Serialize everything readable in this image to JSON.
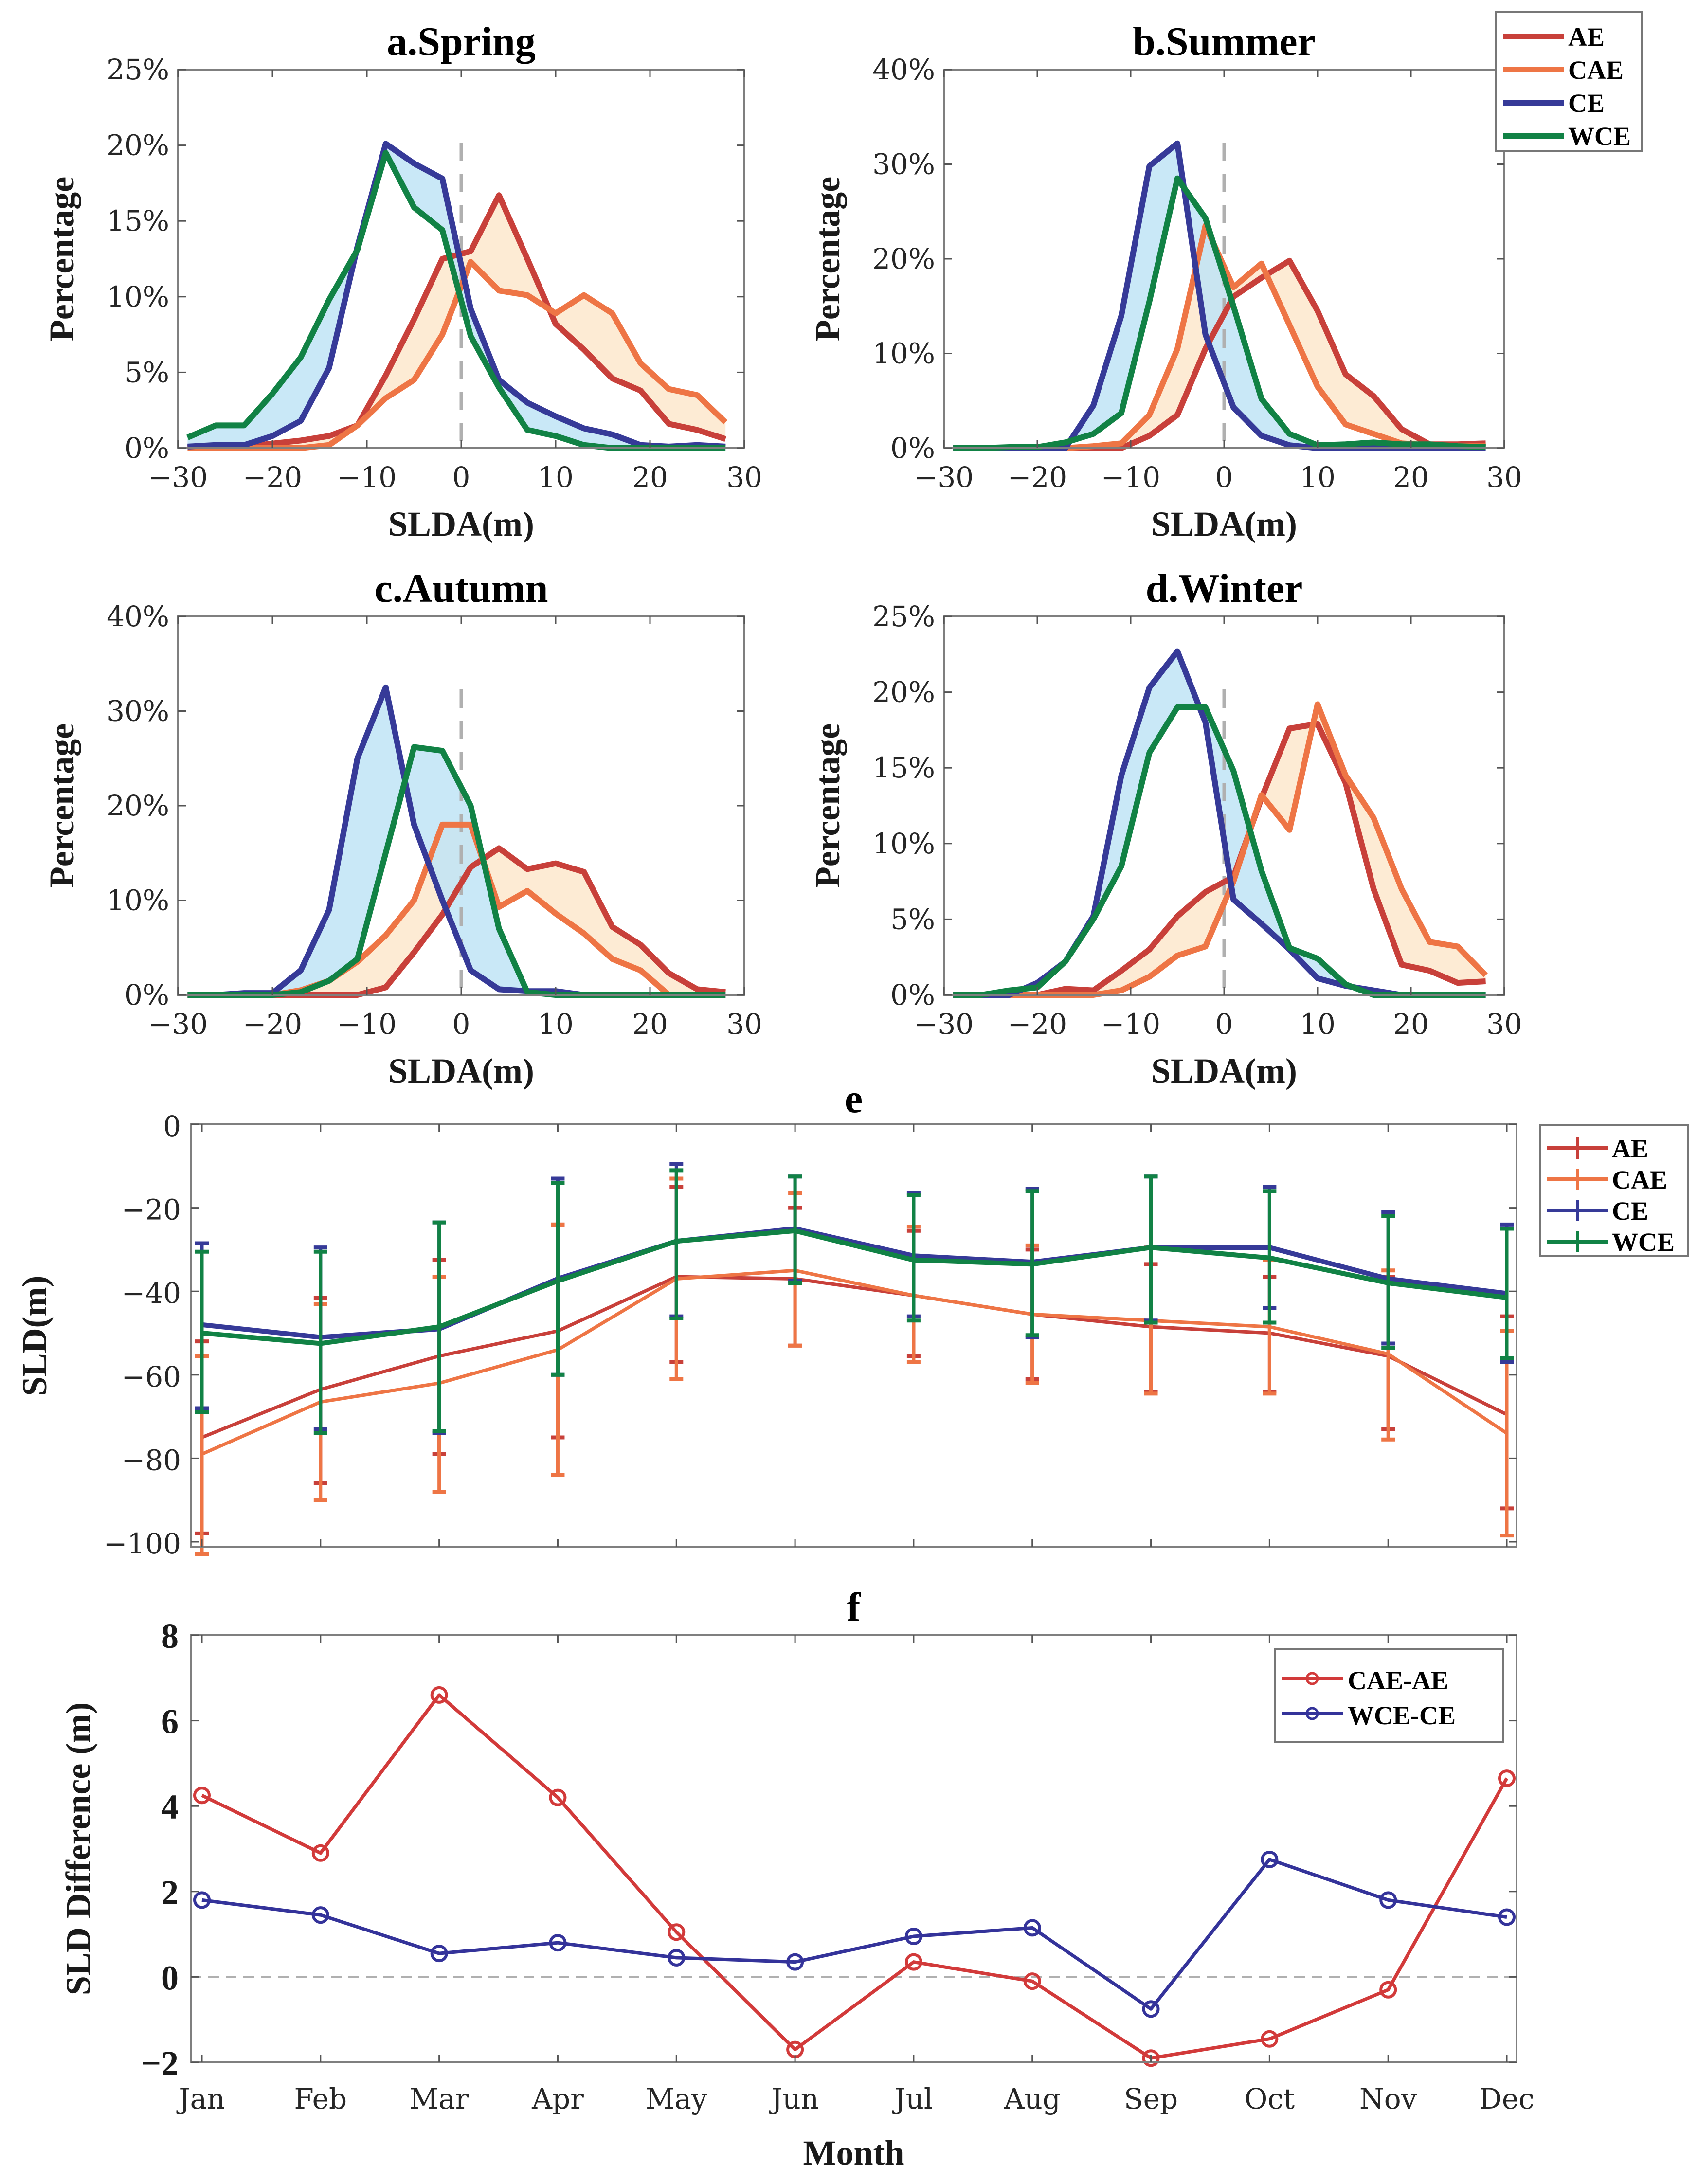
{
  "chart_data": [
    {
      "id": "a",
      "type": "line",
      "title": "a.Spring",
      "xlabel": "SLDA(m)",
      "ylabel": "Percentage",
      "xlim": [
        -30,
        30
      ],
      "ylim": [
        0,
        25
      ],
      "xticks": [
        -30,
        -20,
        -10,
        0,
        10,
        20,
        30
      ],
      "xtick_labels": [
        "−30",
        "−20",
        "−10",
        "0",
        "10",
        "20",
        "30"
      ],
      "yticks": [
        0,
        5,
        10,
        15,
        20,
        25
      ],
      "ytick_labels": [
        "0%",
        "5%",
        "10%",
        "15%",
        "20%",
        "25%"
      ],
      "x": [
        -29,
        -26,
        -23,
        -20,
        -17,
        -14,
        -11,
        -8,
        -5,
        -2,
        1,
        4,
        7,
        10,
        13,
        16,
        19,
        22,
        25,
        28
      ],
      "series": [
        {
          "name": "AE",
          "values": [
            0,
            0.1,
            0.1,
            0.3,
            0.5,
            0.8,
            1.5,
            4.8,
            8.5,
            12.5,
            13.0,
            16.7,
            12.5,
            8.2,
            6.5,
            4.6,
            3.8,
            1.6,
            1.2,
            0.6
          ]
        },
        {
          "name": "CAE",
          "values": [
            0,
            0,
            0,
            0,
            0,
            0.2,
            1.5,
            3.3,
            4.5,
            7.5,
            12.3,
            10.4,
            10.1,
            8.9,
            10.1,
            8.9,
            5.6,
            3.9,
            3.5,
            1.7
          ]
        },
        {
          "name": "CE",
          "values": [
            0.1,
            0.2,
            0.2,
            0.8,
            1.8,
            5.3,
            13.3,
            20.1,
            18.8,
            17.8,
            9.2,
            4.5,
            3.0,
            2.1,
            1.3,
            0.9,
            0.2,
            0.1,
            0.2,
            0.1
          ]
        },
        {
          "name": "WCE",
          "values": [
            0.7,
            1.5,
            1.5,
            3.6,
            6.0,
            9.8,
            13.1,
            19.5,
            15.9,
            14.4,
            7.4,
            4.0,
            1.2,
            0.8,
            0.2,
            0,
            0,
            0,
            0,
            0
          ]
        }
      ],
      "reference_line_x": 0
    },
    {
      "id": "b",
      "type": "line",
      "title": "b.Summer",
      "xlabel": "SLDA(m)",
      "ylabel": "Percentage",
      "xlim": [
        -30,
        30
      ],
      "ylim": [
        0,
        40
      ],
      "xticks": [
        -30,
        -20,
        -10,
        0,
        10,
        20,
        30
      ],
      "xtick_labels": [
        "−30",
        "−20",
        "−10",
        "0",
        "10",
        "20",
        "30"
      ],
      "yticks": [
        0,
        10,
        20,
        30,
        40
      ],
      "ytick_labels": [
        "0%",
        "10%",
        "20%",
        "30%",
        "40%"
      ],
      "x": [
        -29,
        -26,
        -23,
        -20,
        -17,
        -14,
        -11,
        -8,
        -5,
        -2,
        1,
        4,
        7,
        10,
        13,
        16,
        19,
        22,
        25,
        28
      ],
      "series": [
        {
          "name": "AE",
          "values": [
            0,
            0,
            0,
            0,
            0,
            0,
            0,
            1.3,
            3.5,
            10.5,
            16.0,
            18.0,
            19.8,
            14.5,
            7.8,
            5.5,
            2.0,
            0.4,
            0.4,
            0.5
          ]
        },
        {
          "name": "CAE",
          "values": [
            0,
            0,
            0,
            0,
            0,
            0.2,
            0.5,
            3.5,
            10.5,
            23.5,
            17.0,
            19.5,
            13.0,
            6.5,
            2.5,
            1.5,
            0.5,
            0.3,
            0.2,
            0.2
          ]
        },
        {
          "name": "CE",
          "values": [
            0,
            0,
            0,
            0,
            0,
            4.5,
            14.0,
            29.8,
            32.2,
            12.0,
            4.3,
            1.3,
            0.3,
            0,
            0,
            0,
            0,
            0,
            0,
            0
          ]
        },
        {
          "name": "WCE",
          "values": [
            0,
            0,
            0.1,
            0.1,
            0.6,
            1.5,
            3.7,
            15.5,
            28.5,
            24.3,
            15.0,
            5.2,
            1.5,
            0.3,
            0.4,
            0.6,
            0.4,
            0.4,
            0.2,
            0.1
          ]
        }
      ],
      "reference_line_x": 0,
      "legend": {
        "placement": "top-right-outside",
        "entries": [
          "AE",
          "CAE",
          "CE",
          "WCE"
        ]
      }
    },
    {
      "id": "c",
      "type": "line",
      "title": "c.Autumn",
      "xlabel": "SLDA(m)",
      "ylabel": "Percentage",
      "xlim": [
        -30,
        30
      ],
      "ylim": [
        0,
        40
      ],
      "xticks": [
        -30,
        -20,
        -10,
        0,
        10,
        20,
        30
      ],
      "xtick_labels": [
        "−30",
        "−20",
        "−10",
        "0",
        "10",
        "20",
        "30"
      ],
      "yticks": [
        0,
        10,
        20,
        30,
        40
      ],
      "ytick_labels": [
        "0%",
        "10%",
        "20%",
        "30%",
        "40%"
      ],
      "x": [
        -29,
        -26,
        -23,
        -20,
        -17,
        -14,
        -11,
        -8,
        -5,
        -2,
        1,
        4,
        7,
        10,
        13,
        16,
        19,
        22,
        25,
        28
      ],
      "series": [
        {
          "name": "AE",
          "values": [
            0,
            0,
            0,
            0,
            0,
            0,
            0,
            0.8,
            4.5,
            8.5,
            13.5,
            15.5,
            13.3,
            13.9,
            13.0,
            7.2,
            5.3,
            2.3,
            0.6,
            0.3
          ]
        },
        {
          "name": "CAE",
          "values": [
            0,
            0,
            0,
            0,
            0.5,
            1.5,
            3.5,
            6.3,
            10.0,
            18.0,
            18.0,
            9.3,
            11.0,
            8.6,
            6.5,
            3.8,
            2.6,
            0,
            0,
            0
          ]
        },
        {
          "name": "CE",
          "values": [
            0,
            0,
            0.2,
            0.2,
            2.6,
            9.0,
            25.0,
            32.5,
            18.0,
            10.0,
            2.6,
            0.6,
            0.4,
            0.4,
            0,
            0,
            0,
            0,
            0,
            0
          ]
        },
        {
          "name": "WCE",
          "values": [
            0,
            0,
            0,
            0,
            0.3,
            1.5,
            3.8,
            15.0,
            26.2,
            25.8,
            20.0,
            7.0,
            0.3,
            0,
            0,
            0,
            0,
            0,
            0,
            0
          ]
        }
      ],
      "reference_line_x": 0
    },
    {
      "id": "d",
      "type": "line",
      "title": "d.Winter",
      "xlabel": "SLDA(m)",
      "ylabel": "Percentage",
      "xlim": [
        -30,
        30
      ],
      "ylim": [
        0,
        25
      ],
      "xticks": [
        -30,
        -20,
        -10,
        0,
        10,
        20,
        30
      ],
      "xtick_labels": [
        "−30",
        "−20",
        "−10",
        "0",
        "10",
        "20",
        "30"
      ],
      "yticks": [
        0,
        5,
        10,
        15,
        20,
        25
      ],
      "ytick_labels": [
        "0%",
        "5%",
        "10%",
        "15%",
        "20%",
        "25%"
      ],
      "x": [
        -29,
        -26,
        -23,
        -20,
        -17,
        -14,
        -11,
        -8,
        -5,
        -2,
        1,
        4,
        7,
        10,
        13,
        16,
        19,
        22,
        25,
        28
      ],
      "series": [
        {
          "name": "AE",
          "values": [
            0,
            0,
            0,
            0,
            0.4,
            0.3,
            1.6,
            3.0,
            5.2,
            6.8,
            7.8,
            13.0,
            17.6,
            17.9,
            14.0,
            7.0,
            2.0,
            1.6,
            0.8,
            0.9
          ]
        },
        {
          "name": "CAE",
          "values": [
            0,
            0,
            0,
            0,
            0,
            0,
            0.3,
            1.2,
            2.6,
            3.2,
            7.5,
            13.2,
            10.9,
            19.2,
            14.5,
            11.7,
            7.0,
            3.5,
            3.2,
            1.3
          ]
        },
        {
          "name": "CE",
          "values": [
            0,
            0,
            0,
            0.8,
            2.2,
            5.2,
            14.5,
            20.3,
            22.7,
            18.0,
            6.3,
            4.7,
            3.0,
            1.1,
            0.6,
            0.3,
            0,
            0,
            0,
            0
          ]
        },
        {
          "name": "WCE",
          "values": [
            0,
            0,
            0.3,
            0.5,
            2.2,
            5.0,
            8.5,
            16.0,
            19.0,
            19.0,
            14.8,
            8.2,
            3.1,
            2.4,
            0.7,
            0,
            0,
            0,
            0,
            0
          ]
        }
      ],
      "reference_line_x": 0
    },
    {
      "id": "e",
      "type": "line",
      "title": "e",
      "xlabel": "",
      "ylabel": "SLD(m)",
      "ylim": [
        -100,
        0
      ],
      "yticks": [
        0,
        -20,
        -40,
        -60,
        -80,
        -100
      ],
      "ytick_labels": [
        "0",
        "−20",
        "−40",
        "−60",
        "−80",
        "−100"
      ],
      "categories": [
        "Jan",
        "Feb",
        "Mar",
        "Apr",
        "May",
        "Jun",
        "Jul",
        "Aug",
        "Sep",
        "Oct",
        "Nov",
        "Dec"
      ],
      "series": [
        {
          "name": "AE",
          "values": [
            -75,
            -63.5,
            -55.5,
            -49.5,
            -36.5,
            -37,
            -41,
            -45.5,
            -48.5,
            -50,
            -55.5,
            -69.5
          ],
          "lower": [
            -98,
            -86,
            -79,
            -75,
            -57,
            -53,
            -55.5,
            -61,
            -64,
            -64,
            -73,
            -92
          ],
          "upper": [
            -52,
            -41.5,
            -32.5,
            -24,
            -15,
            -20,
            -25.5,
            -30,
            -33.5,
            -36.5,
            -36.5,
            -46
          ]
        },
        {
          "name": "CAE",
          "values": [
            -79,
            -66.5,
            -62,
            -54,
            -37,
            -35,
            -41,
            -45.5,
            -47,
            -48.5,
            -55,
            -74
          ],
          "lower": [
            -103,
            -90,
            -88,
            -84,
            -61,
            -53,
            -57,
            -62,
            -64.5,
            -64.5,
            -75.5,
            -98.5
          ],
          "upper": [
            -55.5,
            -43,
            -36.5,
            -24,
            -13,
            -16.5,
            -24.5,
            -29,
            -29.5,
            -32.5,
            -35,
            -49.5
          ]
        },
        {
          "name": "CE",
          "values": [
            -48,
            -51,
            -49,
            -37,
            -28,
            -25,
            -31.5,
            -33,
            -29.5,
            -29.5,
            -37,
            -40.5
          ],
          "lower": [
            -68,
            -73,
            -74,
            -60,
            -46,
            -37.5,
            -46,
            -51,
            -47,
            -44,
            -52.5,
            -57
          ],
          "upper": [
            -28.5,
            -29.5,
            -23.5,
            -13,
            -9.5,
            -12.5,
            -16.5,
            -15.5,
            -12.5,
            -15,
            -21,
            -24
          ]
        },
        {
          "name": "WCE",
          "values": [
            -50,
            -52.5,
            -48.5,
            -37.5,
            -28,
            -25.5,
            -32.5,
            -33.5,
            -29.5,
            -32,
            -38,
            -41.5
          ],
          "lower": [
            -69,
            -74,
            -73.5,
            -60,
            -46.5,
            -38,
            -47,
            -50.5,
            -47.5,
            -47.5,
            -53.5,
            -56
          ],
          "upper": [
            -30.5,
            -30.5,
            -23.5,
            -14,
            -11,
            -12.5,
            -17,
            -16,
            -12.5,
            -16,
            -22,
            -25
          ]
        }
      ],
      "legend": {
        "placement": "top-right-outside",
        "entries": [
          "AE",
          "CAE",
          "CE",
          "WCE"
        ]
      }
    },
    {
      "id": "f",
      "type": "line",
      "title": "f",
      "xlabel": "Month",
      "ylabel": "SLD Difference (m)",
      "ylim": [
        -2,
        8
      ],
      "yticks": [
        -2,
        0,
        2,
        4,
        6,
        8
      ],
      "ytick_labels": [
        "−2",
        "0",
        "2",
        "4",
        "6",
        "8"
      ],
      "categories": [
        "Jan",
        "Feb",
        "Mar",
        "Apr",
        "May",
        "Jun",
        "Jul",
        "Aug",
        "Sep",
        "Oct",
        "Nov",
        "Dec"
      ],
      "series": [
        {
          "name": "CAE-AE",
          "values": [
            4.25,
            2.9,
            6.6,
            4.2,
            1.05,
            -1.7,
            0.35,
            -0.1,
            -1.9,
            -1.45,
            -0.3,
            4.65
          ]
        },
        {
          "name": "WCE-CE",
          "values": [
            1.8,
            1.45,
            0.55,
            0.8,
            0.45,
            0.35,
            0.95,
            1.15,
            -0.75,
            2.75,
            1.8,
            1.4
          ]
        }
      ],
      "reference_line_y": 0,
      "legend": {
        "placement": "top-right",
        "entries": [
          "CAE-AE",
          "WCE-CE"
        ]
      }
    }
  ],
  "colors": {
    "AE": "#c8403a",
    "CAE": "#ee7545",
    "CE": "#363a98",
    "WCE": "#118245",
    "CAE-AE": "#d23a3a",
    "WCE-CE": "#34339a",
    "cold_fill": "#bfe4f6",
    "warm_fill": "#fde8cc",
    "reference": "#b0b0b0"
  }
}
